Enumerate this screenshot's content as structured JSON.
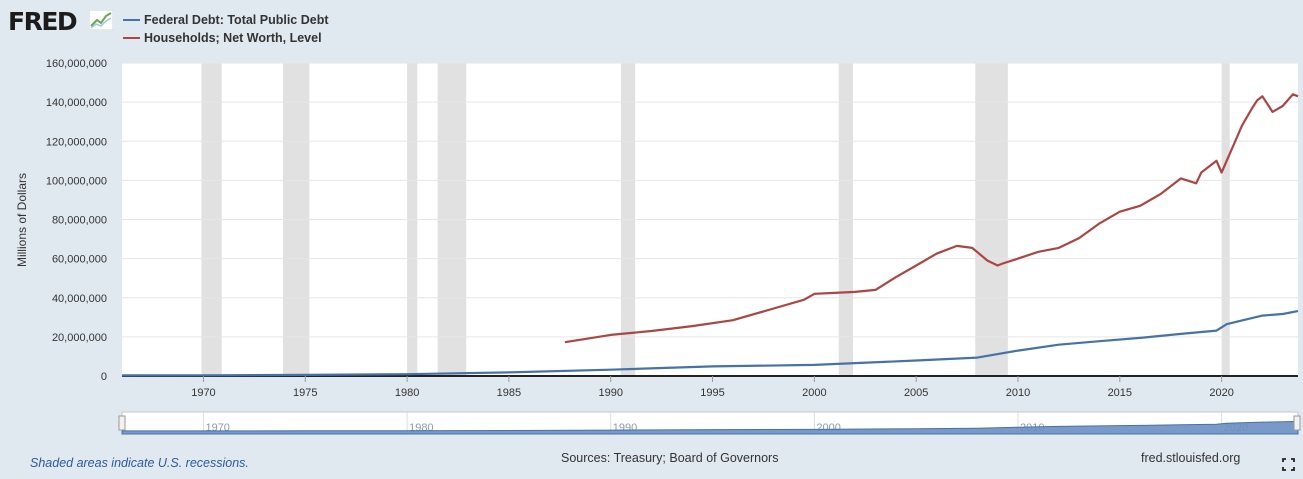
{
  "logo": {
    "text": "FRED"
  },
  "chart_data": {
    "type": "line",
    "ylabel": "Millions of Dollars",
    "ylim": [
      0,
      160000000
    ],
    "yticks": [
      0,
      20000000,
      40000000,
      60000000,
      80000000,
      100000000,
      120000000,
      140000000,
      160000000
    ],
    "ytick_labels": [
      "0",
      "20,000,000",
      "40,000,000",
      "60,000,000",
      "80,000,000",
      "100,000,000",
      "120,000,000",
      "140,000,000",
      "160,000,000"
    ],
    "xlim": [
      1966.0,
      2023.75
    ],
    "xticks": [
      1970,
      1975,
      1980,
      1985,
      1990,
      1995,
      2000,
      2005,
      2010,
      2015,
      2020
    ],
    "navigator_ticks": [
      "1970",
      "1980",
      "1990",
      "2000",
      "2010",
      "2020"
    ],
    "grid": true,
    "recessions": [
      [
        1969.9,
        1970.9
      ],
      [
        1973.9,
        1975.2
      ],
      [
        1980.0,
        1980.5
      ],
      [
        1981.5,
        1982.9
      ],
      [
        1990.5,
        1991.2
      ],
      [
        2001.2,
        2001.9
      ],
      [
        2007.9,
        2009.5
      ],
      [
        2020.0,
        2020.4
      ]
    ],
    "series": [
      {
        "name": "Federal Debt: Total Public Debt",
        "color": "#4572a7",
        "x": [
          1966.0,
          1970.0,
          1975.0,
          1980.0,
          1985.0,
          1990.0,
          1995.0,
          2000.0,
          2005.0,
          2008.0,
          2010.0,
          2012.0,
          2014.0,
          2016.0,
          2018.0,
          2019.75,
          2020.25,
          2021.0,
          2022.0,
          2023.0,
          2023.75
        ],
        "y": [
          320000,
          380000,
          540000,
          910000,
          1820000,
          3200000,
          4900000,
          5660000,
          7900000,
          9400000,
          13000000,
          16000000,
          17800000,
          19500000,
          21500000,
          23200000,
          26500000,
          28400000,
          30900000,
          31700000,
          33200000
        ]
      },
      {
        "name": "Households; Net Worth, Level",
        "color": "#aa4643",
        "x": [
          1987.75,
          1990.0,
          1992.0,
          1994.0,
          1996.0,
          1998.0,
          1999.5,
          2000.0,
          2001.0,
          2002.0,
          2003.0,
          2004.0,
          2005.0,
          2006.0,
          2007.0,
          2007.75,
          2008.5,
          2009.0,
          2009.25,
          2010.0,
          2011.0,
          2012.0,
          2013.0,
          2014.0,
          2015.0,
          2016.0,
          2017.0,
          2018.0,
          2018.75,
          2019.0,
          2019.75,
          2020.0,
          2020.5,
          2021.0,
          2021.5,
          2021.75,
          2022.0,
          2022.5,
          2023.0,
          2023.5,
          2023.75
        ],
        "y": [
          17300000,
          21000000,
          23000000,
          25500000,
          28500000,
          34500000,
          39000000,
          42000000,
          42500000,
          43000000,
          44000000,
          50500000,
          56500000,
          62500000,
          66500000,
          65500000,
          59000000,
          56500000,
          57500000,
          60000000,
          63500000,
          65500000,
          70500000,
          78000000,
          84000000,
          87000000,
          93000000,
          101000000,
          98500000,
          104000000,
          110000000,
          104000000,
          116000000,
          128000000,
          137000000,
          141000000,
          143000000,
          135000000,
          138000000,
          144000000,
          143000000
        ]
      }
    ]
  },
  "footer": {
    "recession_note": "Shaded areas indicate U.S. recessions.",
    "sources": "Sources: Treasury; Board of Governors",
    "site": "fred.stlouisfed.org"
  }
}
